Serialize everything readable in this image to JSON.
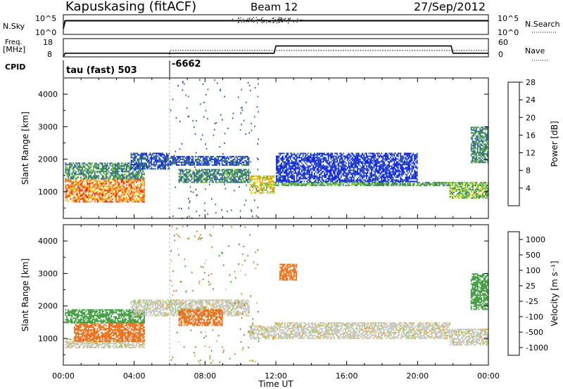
{
  "header": {
    "station": "Kapuskasing (fitACF)",
    "beam": "Beam 12",
    "date": "27/Sep/2012"
  },
  "strips": {
    "nsky_label": "N.Sky",
    "nsky_left_ticks": [
      "10^5",
      "10^0"
    ],
    "nsky_right_ticks": [
      "10^5",
      "10^0"
    ],
    "nsearch_label": "N.Search",
    "freq_label_line1": "Freq.",
    "freq_label_line2": "[MHz]",
    "freq_left_ticks": [
      "18",
      "8"
    ],
    "freq_right_ticks": [
      "60",
      "0"
    ],
    "nave_label": "Nave",
    "cpid_label": "CPID",
    "cpid_first": "tau (fast) 503",
    "cpid_second": "-6662"
  },
  "axes": {
    "ylabel": "Slant Range [km]",
    "xlabel": "Time UT",
    "y_ticks": [
      "1000",
      "2000",
      "3000",
      "4000"
    ],
    "x_ticks": [
      "00:00",
      "04:00",
      "08:00",
      "12:00",
      "16:00",
      "20:00",
      "00:00"
    ]
  },
  "power_scale": {
    "title": "Power [dB]",
    "ticks": [
      "4",
      "8",
      "12",
      "16",
      "20",
      "24",
      "28"
    ],
    "colors": [
      "#0a1ee8",
      "#2a52b8",
      "#2e7d55",
      "#6bbf3a",
      "#f2d21e",
      "#f28c1e",
      "#e82414"
    ]
  },
  "velocity_scale": {
    "title": "Velocity [m s⁻¹]",
    "ticks": [
      "1000",
      "500",
      "100",
      "25",
      "-25",
      "-100",
      "-500",
      "-1000"
    ],
    "colors": [
      "#1a3ec4",
      "#2a7050",
      "#3a9a3a",
      "#8cd23a",
      "#c8c8c0",
      "#f2a020",
      "#f26a10",
      "#e81c10"
    ]
  },
  "chart_data": [
    {
      "type": "line",
      "title": "N.Sky / N.Search",
      "x_range_hours": [
        0,
        24
      ],
      "y_scale": "log",
      "ylim": [
        1,
        100000
      ],
      "series": [
        {
          "name": "N.Sky",
          "x": [
            0,
            0.1,
            3,
            6,
            9,
            12,
            15,
            18,
            21.8,
            22,
            24
          ],
          "y": [
            30,
            3000,
            3000,
            3000,
            3000,
            3000,
            3000,
            3000,
            3000,
            3000,
            3000
          ]
        },
        {
          "name": "N.Search",
          "x": [
            0,
            24
          ],
          "y": [
            1,
            1
          ]
        }
      ]
    },
    {
      "type": "line",
      "title": "Freq. / Nave",
      "x_range_hours": [
        0,
        24
      ],
      "ylim_left": [
        8,
        18
      ],
      "ylim_right": [
        0,
        60
      ],
      "series": [
        {
          "name": "Freq.",
          "x": [
            0,
            0.1,
            6,
            11.9,
            12,
            21.9,
            22,
            24
          ],
          "y": [
            8,
            10,
            10,
            10,
            14,
            14,
            10,
            10
          ]
        },
        {
          "name": "Nave",
          "x": [
            0,
            6,
            6.01,
            24
          ],
          "y": [
            8,
            8,
            11.5,
            11.5
          ]
        }
      ]
    },
    {
      "type": "heatmap",
      "title": "Power [dB]",
      "x_range_hours": [
        0,
        24
      ],
      "ylim": [
        180,
        4500
      ],
      "x_unit": "hours UT",
      "y_unit": "km",
      "regions": [
        {
          "x": [
            0.1,
            4.6
          ],
          "y": [
            700,
            1400
          ],
          "value": 22
        },
        {
          "x": [
            0.1,
            4.6
          ],
          "y": [
            1400,
            1900
          ],
          "value": 10
        },
        {
          "x": [
            3.8,
            6.0
          ],
          "y": [
            1700,
            2200
          ],
          "value": 6
        },
        {
          "x": [
            6.0,
            10.5
          ],
          "y": [
            1800,
            2100
          ],
          "value": 6
        },
        {
          "x": [
            6.5,
            10.5
          ],
          "y": [
            1300,
            1700
          ],
          "value": 10
        },
        {
          "x": [
            10.5,
            11.9
          ],
          "y": [
            950,
            1500
          ],
          "value": 18
        },
        {
          "x": [
            11.9,
            21.8
          ],
          "y": [
            1200,
            1300
          ],
          "value": 12
        },
        {
          "x": [
            12.0,
            20.0
          ],
          "y": [
            1300,
            2200
          ],
          "value": 4
        },
        {
          "x": [
            21.8,
            24.0
          ],
          "y": [
            800,
            1300
          ],
          "value": 14
        },
        {
          "x": [
            23.0,
            24.0
          ],
          "y": [
            1900,
            3000
          ],
          "value": 10
        }
      ]
    },
    {
      "type": "heatmap",
      "title": "Velocity [m s⁻¹]",
      "x_range_hours": [
        0,
        24
      ],
      "ylim": [
        180,
        4500
      ],
      "x_unit": "hours UT",
      "y_unit": "km",
      "regions": [
        {
          "x": [
            0.1,
            4.6
          ],
          "y": [
            700,
            1000
          ],
          "value": 0
        },
        {
          "x": [
            0.6,
            4.6
          ],
          "y": [
            900,
            1500
          ],
          "value": -300
        },
        {
          "x": [
            0.1,
            4.6
          ],
          "y": [
            1500,
            1900
          ],
          "value": 150
        },
        {
          "x": [
            3.8,
            10.5
          ],
          "y": [
            1700,
            2200
          ],
          "value": 0
        },
        {
          "x": [
            6.5,
            9.0
          ],
          "y": [
            1400,
            1900
          ],
          "value": -150
        },
        {
          "x": [
            10.5,
            11.9
          ],
          "y": [
            1000,
            1400
          ],
          "value": 0
        },
        {
          "x": [
            12.2,
            13.2
          ],
          "y": [
            2800,
            3300
          ],
          "value": -300
        },
        {
          "x": [
            11.9,
            21.8
          ],
          "y": [
            1000,
            1500
          ],
          "value": 0
        },
        {
          "x": [
            21.8,
            24.0
          ],
          "y": [
            800,
            1300
          ],
          "value": 0
        },
        {
          "x": [
            23.0,
            24.0
          ],
          "y": [
            1900,
            3000
          ],
          "value": 150
        }
      ]
    }
  ]
}
